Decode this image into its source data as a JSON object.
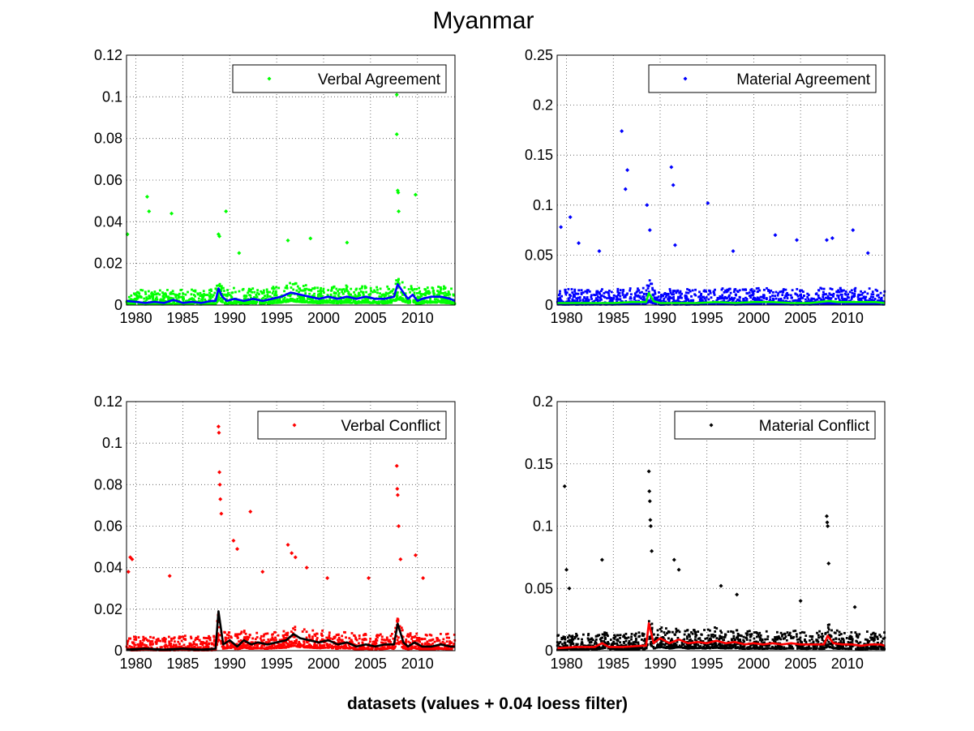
{
  "figure": {
    "title": "Myanmar",
    "xlabel": "datasets (values + 0.04 loess filter)"
  },
  "chart_data": [
    {
      "type": "scatter",
      "title": "",
      "xlabel": "",
      "ylabel": "",
      "xlim": [
        1979,
        2014
      ],
      "ylim": [
        0,
        0.12
      ],
      "xticks": [
        "1980",
        "1985",
        "1990",
        "1995",
        "2000",
        "2005",
        "2010"
      ],
      "yticks": [
        "0",
        "0.02",
        "0.04",
        "0.06",
        "0.08",
        "0.1",
        "0.12"
      ],
      "grid": true,
      "legend_position": "top-right",
      "series": [
        {
          "name": "Verbal Agreement",
          "kind": "points",
          "color": "#00ff00",
          "x": [
            1979.1,
            1981.2,
            1981.4,
            1983.8,
            1988.8,
            1988.9,
            1989.6,
            1991,
            1996.2,
            1998.6,
            2002.5,
            2007.8,
            2007.8,
            2007.9,
            2007.95,
            2008,
            2009.8
          ],
          "y": [
            0.034,
            0.052,
            0.045,
            0.044,
            0.034,
            0.033,
            0.045,
            0.025,
            0.031,
            0.032,
            0.03,
            0.101,
            0.082,
            0.055,
            0.054,
            0.045,
            0.053
          ]
        },
        {
          "name": "",
          "kind": "line",
          "color": "#0000ff",
          "x": [
            1979,
            1980,
            1981,
            1982,
            1983,
            1984,
            1985,
            1986,
            1987,
            1988,
            1988.5,
            1988.8,
            1989.2,
            1989.7,
            1990.5,
            1991.5,
            1992.5,
            1993.5,
            1994.5,
            1995.5,
            1996.5,
            1997.5,
            1998.5,
            1999.5,
            2000.5,
            2001.5,
            2002.5,
            2003.5,
            2004.5,
            2005.5,
            2006.5,
            2007.5,
            2007.9,
            2008.5,
            2009,
            2009.5,
            2010,
            2010.5,
            2011.5,
            2012.5,
            2013.5,
            2014
          ],
          "y": [
            0.002,
            0.0015,
            0.001,
            0.0015,
            0.001,
            0.0025,
            0.001,
            0.0015,
            0.001,
            0.002,
            0.002,
            0.008,
            0.004,
            0.002,
            0.003,
            0.002,
            0.003,
            0.002,
            0.003,
            0.004,
            0.006,
            0.005,
            0.004,
            0.003,
            0.004,
            0.003,
            0.004,
            0.003,
            0.004,
            0.003,
            0.003,
            0.004,
            0.01,
            0.006,
            0.003,
            0.005,
            0.002,
            0.003,
            0.004,
            0.004,
            0.003,
            0.002
          ]
        }
      ]
    },
    {
      "type": "scatter",
      "title": "",
      "xlabel": "",
      "ylabel": "",
      "xlim": [
        1979,
        2014
      ],
      "ylim": [
        0,
        0.25
      ],
      "xticks": [
        "1980",
        "1985",
        "1990",
        "1995",
        "2000",
        "2005",
        "2010"
      ],
      "yticks": [
        "0",
        "0.05",
        "0.1",
        "0.15",
        "0.2",
        "0.25"
      ],
      "grid": true,
      "legend_position": "top-right",
      "series": [
        {
          "name": "Material Agreement",
          "kind": "points",
          "color": "#0000ff",
          "x": [
            1979.4,
            1980.4,
            1981.3,
            1983.5,
            1985.9,
            1986.5,
            1986.3,
            1988.6,
            1988.9,
            1991.2,
            1991.4,
            1991.6,
            1995.1,
            1997.8,
            2002.3,
            2004.6,
            2007.8,
            2008.4,
            2010.6,
            2012.2
          ],
          "y": [
            0.078,
            0.088,
            0.062,
            0.054,
            0.174,
            0.135,
            0.116,
            0.1,
            0.075,
            0.138,
            0.12,
            0.06,
            0.102,
            0.054,
            0.07,
            0.065,
            0.065,
            0.067,
            0.075,
            0.052
          ]
        },
        {
          "name": "",
          "kind": "line",
          "color": "#00ff00",
          "x": [
            1979,
            1981,
            1983,
            1985,
            1987,
            1988.5,
            1988.8,
            1989.3,
            1990,
            1992,
            1994,
            1996,
            1998,
            2000,
            2002,
            2004,
            2006,
            2008,
            2009,
            2011,
            2013,
            2014
          ],
          "y": [
            0.002,
            0.002,
            0.002,
            0.002,
            0.003,
            0.003,
            0.012,
            0.004,
            0.002,
            0.002,
            0.002,
            0.003,
            0.002,
            0.003,
            0.003,
            0.002,
            0.002,
            0.004,
            0.003,
            0.003,
            0.003,
            0.002
          ]
        }
      ]
    },
    {
      "type": "scatter",
      "title": "",
      "xlabel": "",
      "ylabel": "",
      "xlim": [
        1979,
        2014
      ],
      "ylim": [
        0,
        0.12
      ],
      "xticks": [
        "1980",
        "1985",
        "1990",
        "1995",
        "2000",
        "2005",
        "2010"
      ],
      "yticks": [
        "0",
        "0.02",
        "0.04",
        "0.06",
        "0.08",
        "0.1",
        "0.12"
      ],
      "grid": true,
      "legend_position": "top-right",
      "series": [
        {
          "name": "Verbal Conflict",
          "kind": "points",
          "color": "#ff0000",
          "x": [
            1979.2,
            1979.4,
            1979.6,
            1983.6,
            1988.8,
            1988.85,
            1988.9,
            1988.95,
            1989,
            1989.1,
            1990.4,
            1990.8,
            1992.2,
            1993.5,
            1996.2,
            1996.6,
            1997,
            1998.2,
            2000.4,
            2004.8,
            2007.8,
            2007.85,
            2007.9,
            2008,
            2008.2,
            2009.8,
            2010.6
          ],
          "y": [
            0.038,
            0.045,
            0.044,
            0.036,
            0.108,
            0.105,
            0.086,
            0.08,
            0.073,
            0.066,
            0.053,
            0.049,
            0.067,
            0.038,
            0.051,
            0.047,
            0.045,
            0.04,
            0.035,
            0.035,
            0.089,
            0.078,
            0.075,
            0.06,
            0.044,
            0.046,
            0.035
          ]
        },
        {
          "name": "",
          "kind": "line",
          "color": "#000000",
          "x": [
            1979,
            1981,
            1983,
            1985,
            1987,
            1988.5,
            1988.8,
            1989.3,
            1990,
            1990.8,
            1991.5,
            1992.3,
            1993,
            1994,
            1995,
            1996,
            1996.8,
            1997.5,
            1998.5,
            1999.5,
            2000.5,
            2001.5,
            2002.5,
            2003.5,
            2004.5,
            2005.5,
            2006.5,
            2007.5,
            2007.9,
            2008.5,
            2009,
            2009.7,
            2010.5,
            2011.5,
            2012.5,
            2013.5,
            2014
          ],
          "y": [
            0.0005,
            0.001,
            0.0005,
            0.001,
            0.0005,
            0.001,
            0.019,
            0.003,
            0.005,
            0.002,
            0.005,
            0.003,
            0.004,
            0.003,
            0.004,
            0.005,
            0.008,
            0.006,
            0.005,
            0.004,
            0.005,
            0.003,
            0.004,
            0.002,
            0.003,
            0.002,
            0.003,
            0.003,
            0.013,
            0.004,
            0.002,
            0.004,
            0.002,
            0.002,
            0.003,
            0.002,
            0.002
          ]
        }
      ]
    },
    {
      "type": "scatter",
      "title": "",
      "xlabel": "",
      "ylabel": "",
      "xlim": [
        1979,
        2014
      ],
      "ylim": [
        0,
        0.2
      ],
      "xticks": [
        "1980",
        "1985",
        "1990",
        "1995",
        "2000",
        "2005",
        "2010"
      ],
      "yticks": [
        "0",
        "0.05",
        "0.1",
        "0.15",
        "0.2"
      ],
      "grid": true,
      "legend_position": "top-right",
      "series": [
        {
          "name": "Material Conflict",
          "kind": "points",
          "color": "#000000",
          "x": [
            1979.8,
            1980,
            1980.3,
            1983.8,
            1988.8,
            1988.85,
            1988.9,
            1988.95,
            1989,
            1989.1,
            1991.5,
            1992,
            1996.5,
            1998.2,
            2005,
            2007.8,
            2007.85,
            2007.9,
            2008,
            2010.8
          ],
          "y": [
            0.132,
            0.065,
            0.05,
            0.073,
            0.144,
            0.128,
            0.12,
            0.105,
            0.1,
            0.08,
            0.073,
            0.065,
            0.052,
            0.045,
            0.04,
            0.108,
            0.103,
            0.1,
            0.07,
            0.035
          ]
        },
        {
          "name": "",
          "kind": "line",
          "color": "#ff0000",
          "x": [
            1979,
            1981,
            1983,
            1983.8,
            1984.5,
            1986,
            1988,
            1988.5,
            1988.8,
            1989.3,
            1990,
            1991,
            1992,
            1993,
            1994,
            1995,
            1996,
            1997,
            1998,
            1999,
            2000,
            2001,
            2002,
            2003,
            2004,
            2005,
            2006,
            2007.5,
            2007.9,
            2008.5,
            2009.5,
            2010.5,
            2011.5,
            2012.5,
            2013.5,
            2014
          ],
          "y": [
            0.002,
            0.003,
            0.003,
            0.006,
            0.003,
            0.003,
            0.004,
            0.004,
            0.022,
            0.006,
            0.01,
            0.006,
            0.009,
            0.006,
            0.007,
            0.006,
            0.008,
            0.006,
            0.007,
            0.005,
            0.006,
            0.005,
            0.006,
            0.005,
            0.006,
            0.005,
            0.005,
            0.005,
            0.012,
            0.006,
            0.005,
            0.005,
            0.004,
            0.005,
            0.005,
            0.004
          ]
        }
      ]
    }
  ]
}
